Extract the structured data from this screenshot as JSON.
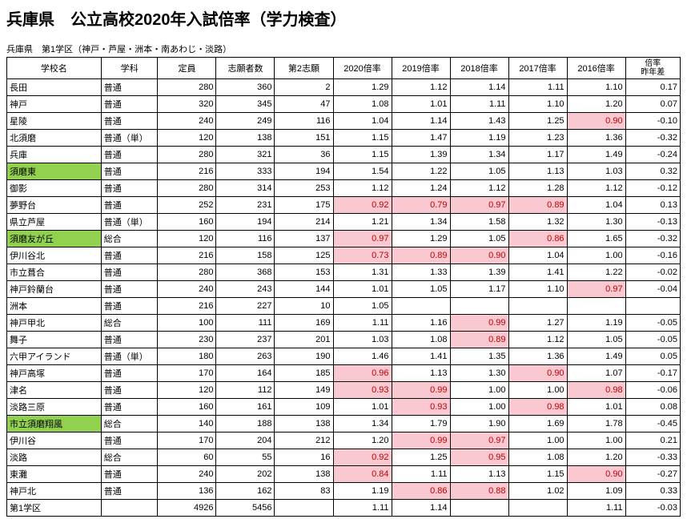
{
  "title": "兵庫県　公立高校2020年入試倍率（学力検査）",
  "subtitle": "兵庫県　第1学区（神戸・芦屋・洲本・南あわじ・淡路）",
  "colors": {
    "highlight_green": "#92d050",
    "highlight_pink": "#fac8d0",
    "pink_text": "#c00000",
    "border": "#000000",
    "background": "#ffffff"
  },
  "columns": [
    "学校名",
    "学科",
    "定員",
    "志願者数",
    "第2志願",
    "2020倍率",
    "2019倍率",
    "2018倍率",
    "2017倍率",
    "2016倍率",
    "倍率\n昨年差"
  ],
  "rows": [
    {
      "name": "長田",
      "dept": "普通",
      "cap": "280",
      "app": "360",
      "sec": "2",
      "r20": "1.29",
      "r19": "1.12",
      "r18": "1.14",
      "r17": "1.11",
      "r16": "1.10",
      "diff": "0.17"
    },
    {
      "name": "神戸",
      "dept": "普通",
      "cap": "320",
      "app": "345",
      "sec": "47",
      "r20": "1.08",
      "r19": "1.01",
      "r18": "1.11",
      "r17": "1.10",
      "r16": "1.20",
      "diff": "0.07"
    },
    {
      "name": "星陵",
      "dept": "普通",
      "cap": "240",
      "app": "249",
      "sec": "116",
      "r20": "1.04",
      "r19": "1.14",
      "r18": "1.43",
      "r17": "1.25",
      "r16": "0.90",
      "diff": "-0.10",
      "pink": [
        "r16"
      ]
    },
    {
      "name": "北須磨",
      "dept": "普通（単）",
      "cap": "120",
      "app": "138",
      "sec": "151",
      "r20": "1.15",
      "r19": "1.47",
      "r18": "1.19",
      "r17": "1.23",
      "r16": "1.36",
      "diff": "-0.32"
    },
    {
      "name": "兵庫",
      "dept": "普通",
      "cap": "280",
      "app": "321",
      "sec": "36",
      "r20": "1.15",
      "r19": "1.39",
      "r18": "1.34",
      "r17": "1.17",
      "r16": "1.49",
      "diff": "-0.24"
    },
    {
      "name": "須磨東",
      "dept": "普通",
      "cap": "216",
      "app": "333",
      "sec": "194",
      "r20": "1.54",
      "r19": "1.22",
      "r18": "1.05",
      "r17": "1.13",
      "r16": "1.03",
      "diff": "0.32",
      "green": true
    },
    {
      "name": "御影",
      "dept": "普通",
      "cap": "280",
      "app": "314",
      "sec": "253",
      "r20": "1.12",
      "r19": "1.24",
      "r18": "1.12",
      "r17": "1.28",
      "r16": "1.12",
      "diff": "-0.12"
    },
    {
      "name": "夢野台",
      "dept": "普通",
      "cap": "252",
      "app": "231",
      "sec": "175",
      "r20": "0.92",
      "r19": "0.79",
      "r18": "0.97",
      "r17": "0.89",
      "r16": "1.04",
      "diff": "0.13",
      "pink": [
        "r20",
        "r19",
        "r18",
        "r17"
      ]
    },
    {
      "name": "県立芦屋",
      "dept": "普通（単）",
      "cap": "160",
      "app": "194",
      "sec": "214",
      "r20": "1.21",
      "r19": "1.34",
      "r18": "1.58",
      "r17": "1.32",
      "r16": "1.30",
      "diff": "-0.13"
    },
    {
      "name": "須磨友が丘",
      "dept": "総合",
      "cap": "120",
      "app": "116",
      "sec": "137",
      "r20": "0.97",
      "r19": "1.29",
      "r18": "1.05",
      "r17": "0.86",
      "r16": "1.65",
      "diff": "-0.32",
      "green": true,
      "pink": [
        "r20",
        "r17"
      ]
    },
    {
      "name": "伊川谷北",
      "dept": "普通",
      "cap": "216",
      "app": "158",
      "sec": "125",
      "r20": "0.73",
      "r19": "0.89",
      "r18": "0.90",
      "r17": "1.04",
      "r16": "1.00",
      "diff": "-0.16",
      "pink": [
        "r20",
        "r19",
        "r18"
      ]
    },
    {
      "name": "市立葺合",
      "dept": "普通",
      "cap": "280",
      "app": "368",
      "sec": "153",
      "r20": "1.31",
      "r19": "1.33",
      "r18": "1.39",
      "r17": "1.41",
      "r16": "1.22",
      "diff": "-0.02"
    },
    {
      "name": "神戸鈴蘭台",
      "dept": "普通",
      "cap": "240",
      "app": "243",
      "sec": "144",
      "r20": "1.01",
      "r19": "1.05",
      "r18": "1.17",
      "r17": "1.10",
      "r16": "0.97",
      "diff": "-0.04",
      "pink": [
        "r16"
      ]
    },
    {
      "name": "洲本",
      "dept": "普通",
      "cap": "216",
      "app": "227",
      "sec": "10",
      "r20": "1.05",
      "r19": "",
      "r18": "",
      "r17": "",
      "r16": "",
      "diff": ""
    },
    {
      "name": "神戸甲北",
      "dept": "総合",
      "cap": "100",
      "app": "111",
      "sec": "169",
      "r20": "1.11",
      "r19": "1.16",
      "r18": "0.99",
      "r17": "1.27",
      "r16": "1.19",
      "diff": "-0.05",
      "pink": [
        "r18"
      ]
    },
    {
      "name": "舞子",
      "dept": "普通",
      "cap": "230",
      "app": "237",
      "sec": "201",
      "r20": "1.03",
      "r19": "1.08",
      "r18": "0.89",
      "r17": "1.12",
      "r16": "1.05",
      "diff": "-0.05",
      "pink": [
        "r18"
      ]
    },
    {
      "name": "六甲アイランド",
      "dept": "普通（単）",
      "cap": "180",
      "app": "263",
      "sec": "190",
      "r20": "1.46",
      "r19": "1.41",
      "r18": "1.35",
      "r17": "1.36",
      "r16": "1.49",
      "diff": "0.05"
    },
    {
      "name": "神戸高塚",
      "dept": "普通",
      "cap": "170",
      "app": "164",
      "sec": "185",
      "r20": "0.96",
      "r19": "1.13",
      "r18": "1.30",
      "r17": "0.90",
      "r16": "1.07",
      "diff": "-0.17",
      "pink": [
        "r20",
        "r17"
      ]
    },
    {
      "name": "津名",
      "dept": "普通",
      "cap": "120",
      "app": "112",
      "sec": "149",
      "r20": "0.93",
      "r19": "0.99",
      "r18": "1.00",
      "r17": "1.00",
      "r16": "0.98",
      "diff": "-0.06",
      "pink": [
        "r20",
        "r19",
        "r16"
      ]
    },
    {
      "name": "淡路三原",
      "dept": "普通",
      "cap": "160",
      "app": "161",
      "sec": "109",
      "r20": "1.01",
      "r19": "0.93",
      "r18": "1.00",
      "r17": "0.98",
      "r16": "1.01",
      "diff": "0.08",
      "pink": [
        "r19",
        "r17"
      ]
    },
    {
      "name": "市立須磨翔風",
      "dept": "総合",
      "cap": "140",
      "app": "188",
      "sec": "138",
      "r20": "1.34",
      "r19": "1.79",
      "r18": "1.90",
      "r17": "1.69",
      "r16": "1.78",
      "diff": "-0.45",
      "green": true
    },
    {
      "name": "伊川谷",
      "dept": "普通",
      "cap": "170",
      "app": "204",
      "sec": "212",
      "r20": "1.20",
      "r19": "0.99",
      "r18": "0.97",
      "r17": "1.00",
      "r16": "1.00",
      "diff": "0.21",
      "pink": [
        "r19",
        "r18"
      ]
    },
    {
      "name": "淡路",
      "dept": "総合",
      "cap": "60",
      "app": "55",
      "sec": "16",
      "r20": "0.92",
      "r19": "1.25",
      "r18": "0.95",
      "r17": "1.08",
      "r16": "1.20",
      "diff": "-0.33",
      "pink": [
        "r20",
        "r18"
      ]
    },
    {
      "name": "東灘",
      "dept": "普通",
      "cap": "240",
      "app": "202",
      "sec": "138",
      "r20": "0.84",
      "r19": "1.11",
      "r18": "1.13",
      "r17": "1.15",
      "r16": "0.90",
      "diff": "-0.27",
      "pink": [
        "r20",
        "r16"
      ]
    },
    {
      "name": "神戸北",
      "dept": "普通",
      "cap": "136",
      "app": "162",
      "sec": "83",
      "r20": "1.19",
      "r19": "0.86",
      "r18": "0.88",
      "r17": "1.02",
      "r16": "1.09",
      "diff": "0.33",
      "pink": [
        "r19",
        "r18"
      ]
    }
  ],
  "total": {
    "name": "第1学区",
    "cap": "4926",
    "app": "5456",
    "r20": "1.11",
    "r19": "1.14",
    "r17": "",
    "r16": "1.11",
    "diff": "-0.03"
  }
}
